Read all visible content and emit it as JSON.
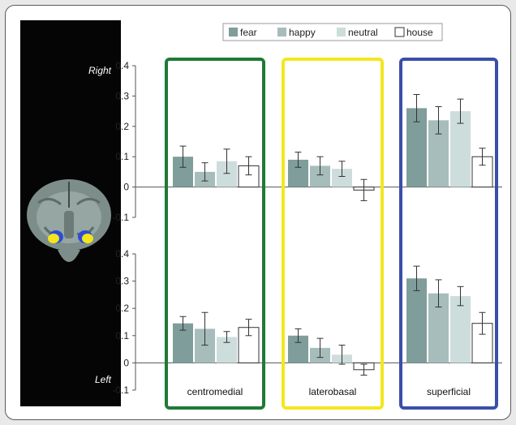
{
  "labels": {
    "top_panel": "Right",
    "bottom_panel": "Left"
  },
  "colors": {
    "fear": "#7f9d9b",
    "happy": "#a6bdbb",
    "neutral": "#cddddb",
    "house": "#ffffff",
    "centromedial_box": "#1f7a36",
    "laterobasal_box": "#f4e71c",
    "superficial_box": "#3a4fa8"
  },
  "chart_data": {
    "type": "bar",
    "legend": {
      "placement": "top",
      "entries": [
        "fear",
        "happy",
        "neutral",
        "house"
      ]
    },
    "categories": [
      "centromedial",
      "laterobasal",
      "superficial"
    ],
    "panels": [
      {
        "name": "Right",
        "ylim": [
          -0.1,
          0.4
        ],
        "yticks": [
          "0.4",
          "0.3",
          "0.2",
          "0.1",
          "0",
          "-0.1"
        ],
        "series": [
          {
            "name": "fear",
            "values": [
              0.1,
              0.09,
              0.26
            ],
            "errors": [
              0.035,
              0.025,
              0.045
            ]
          },
          {
            "name": "happy",
            "values": [
              0.05,
              0.07,
              0.22
            ],
            "errors": [
              0.03,
              0.03,
              0.045
            ]
          },
          {
            "name": "neutral",
            "values": [
              0.085,
              0.06,
              0.25
            ],
            "errors": [
              0.04,
              0.025,
              0.04
            ]
          },
          {
            "name": "house",
            "values": [
              0.07,
              -0.01,
              0.1
            ],
            "errors": [
              0.03,
              0.035,
              0.028
            ]
          }
        ]
      },
      {
        "name": "Left",
        "ylim": [
          -0.1,
          0.4
        ],
        "yticks": [
          "0.4",
          "0.3",
          "0.2",
          "0.1",
          "0",
          "-0.1"
        ],
        "series": [
          {
            "name": "fear",
            "values": [
              0.145,
              0.1,
              0.31
            ],
            "errors": [
              0.025,
              0.025,
              0.045
            ]
          },
          {
            "name": "happy",
            "values": [
              0.125,
              0.055,
              0.255
            ],
            "errors": [
              0.06,
              0.035,
              0.05
            ]
          },
          {
            "name": "neutral",
            "values": [
              0.095,
              0.03,
              0.245
            ],
            "errors": [
              0.02,
              0.035,
              0.035
            ]
          },
          {
            "name": "house",
            "values": [
              0.13,
              -0.025,
              0.145
            ],
            "errors": [
              0.03,
              0.02,
              0.04
            ]
          }
        ]
      }
    ]
  }
}
